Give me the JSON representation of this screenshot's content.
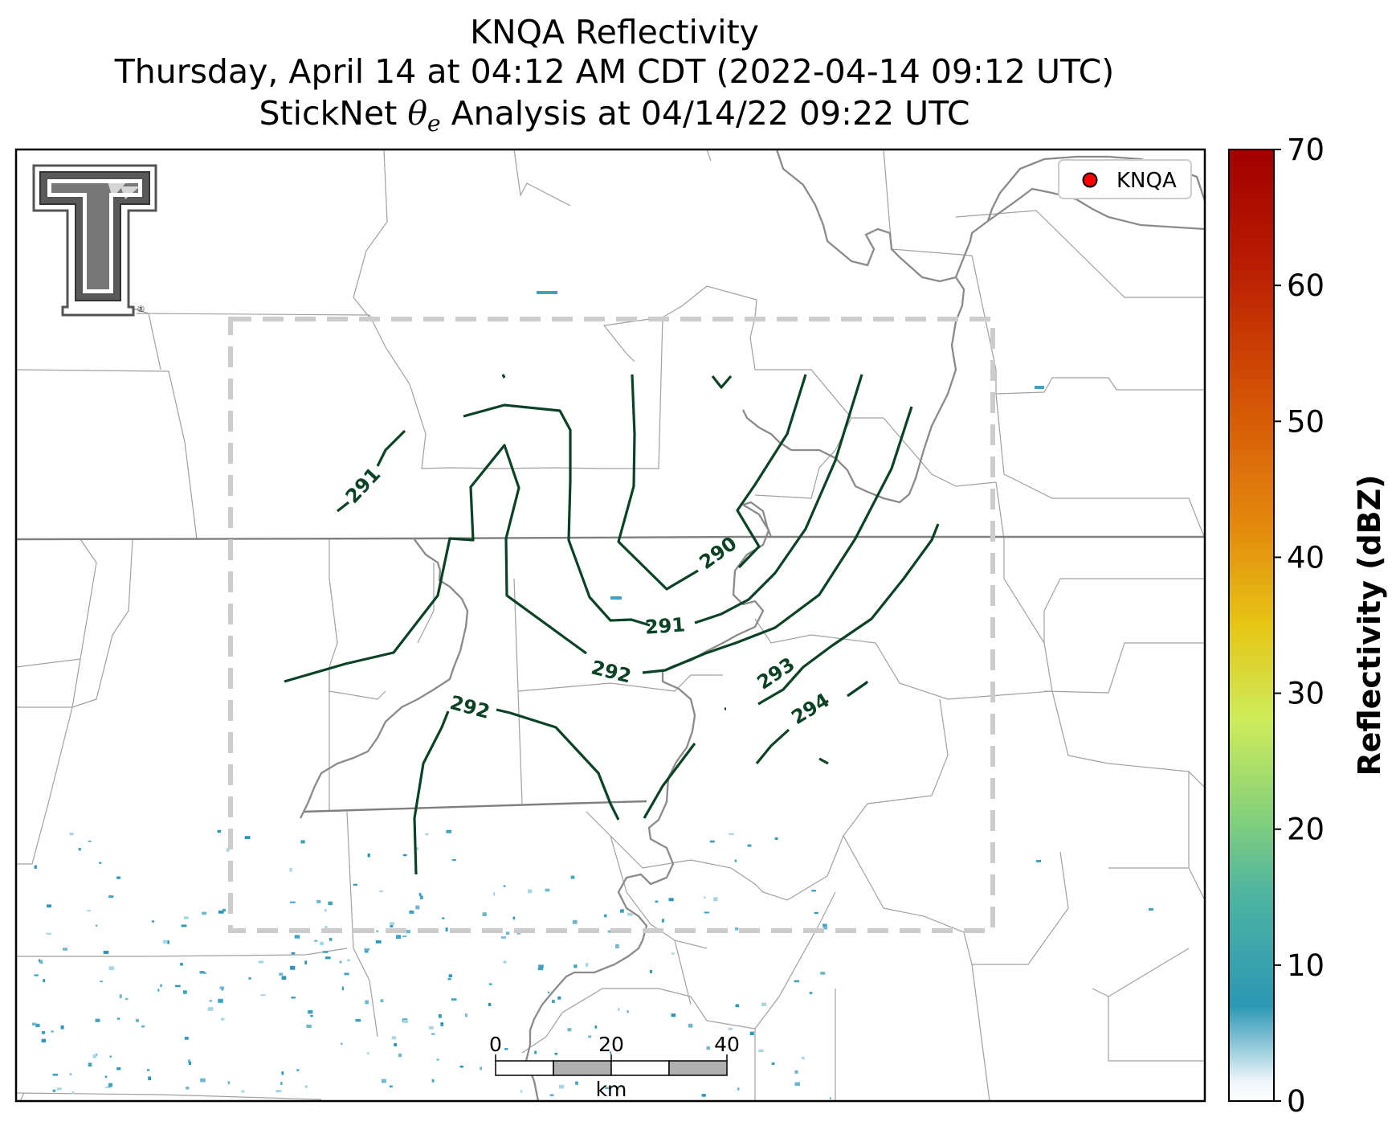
{
  "titles": {
    "line1": "KNQA Reflectivity",
    "line2": "Thursday, April 14 at 04:12 AM CDT (2022-04-14 09:12 UTC)",
    "line3_prefix": "StickNet ",
    "line3_symbol": "θ",
    "line3_sub": "e",
    "line3_suffix": " Analysis at 04/14/22 09:22 UTC"
  },
  "legend": {
    "label": "KNQA",
    "marker_color": "#ff0000"
  },
  "logo": {
    "letter": "T",
    "mark": "®"
  },
  "scalebar": {
    "ticks": [
      "0",
      "20",
      "40"
    ],
    "unit": "km"
  },
  "colorbar": {
    "label": "Reflectivity (dBZ)",
    "min": 0,
    "max": 70,
    "ticks": [
      "0",
      "10",
      "20",
      "30",
      "40",
      "50",
      "60",
      "70"
    ],
    "colors": [
      "#ffffff",
      "#2b97b5",
      "#5fbf8e",
      "#c5ec5f",
      "#e5d021",
      "#e48b0d",
      "#c73606",
      "#a20000"
    ]
  },
  "contour_labels": [
    "291",
    "290",
    "291",
    "292",
    "292",
    "293",
    "294"
  ],
  "styles": {
    "contour_color": "#0a4224",
    "state_border_color": "#7a7a7a",
    "county_border_color": "#a0a0a0",
    "river_color": "#808080",
    "domain_box_color": "#cccccc"
  }
}
